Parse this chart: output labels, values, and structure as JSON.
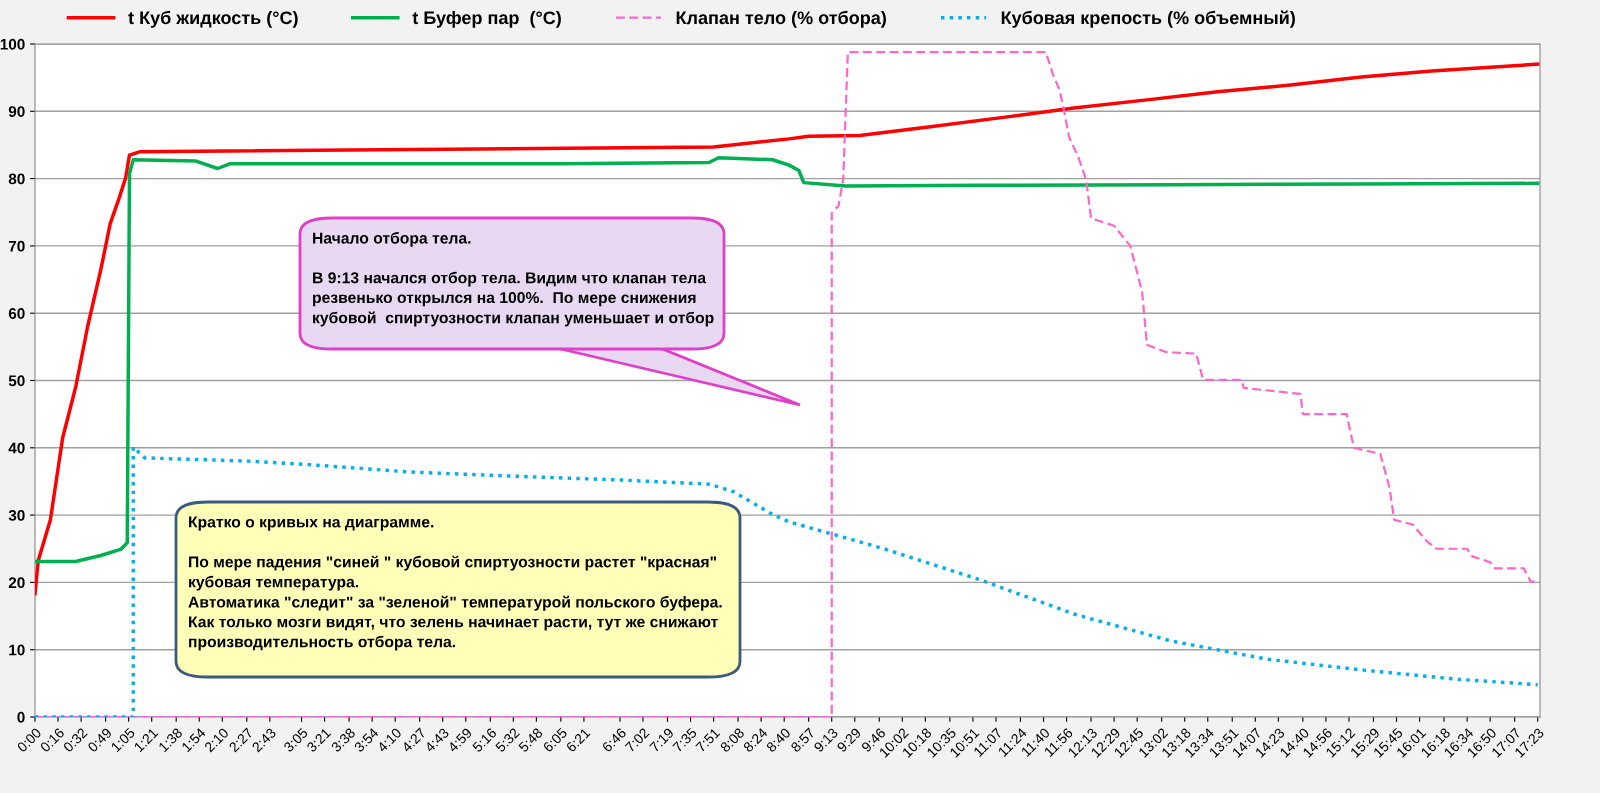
{
  "chart_data": {
    "type": "line",
    "xlim": [
      0,
      17.41
    ],
    "ylim": [
      0,
      100
    ],
    "yticks": [
      0,
      10,
      20,
      30,
      40,
      50,
      60,
      70,
      80,
      90,
      100
    ],
    "xticks": [
      {
        "value": 0,
        "label": "0:00"
      },
      {
        "value": 0.2667,
        "label": "0:16"
      },
      {
        "value": 0.5333,
        "label": "0:32"
      },
      {
        "value": 0.8167,
        "label": "0:49"
      },
      {
        "value": 1.0833,
        "label": "1:05"
      },
      {
        "value": 1.35,
        "label": "1:21"
      },
      {
        "value": 1.6333,
        "label": "1:38"
      },
      {
        "value": 1.9,
        "label": "1:54"
      },
      {
        "value": 2.1667,
        "label": "2:10"
      },
      {
        "value": 2.45,
        "label": "2:27"
      },
      {
        "value": 2.7167,
        "label": "2:43"
      },
      {
        "value": 3.0833,
        "label": "3:05"
      },
      {
        "value": 3.35,
        "label": "3:21"
      },
      {
        "value": 3.6333,
        "label": "3:38"
      },
      {
        "value": 3.9,
        "label": "3:54"
      },
      {
        "value": 4.1667,
        "label": "4:10"
      },
      {
        "value": 4.45,
        "label": "4:27"
      },
      {
        "value": 4.7167,
        "label": "4:43"
      },
      {
        "value": 4.9833,
        "label": "4:59"
      },
      {
        "value": 5.2667,
        "label": "5:16"
      },
      {
        "value": 5.5333,
        "label": "5:32"
      },
      {
        "value": 5.8,
        "label": "5:48"
      },
      {
        "value": 6.0833,
        "label": "6:05"
      },
      {
        "value": 6.35,
        "label": "6:21"
      },
      {
        "value": 6.7667,
        "label": "6:46"
      },
      {
        "value": 7.0333,
        "label": "7:02"
      },
      {
        "value": 7.3167,
        "label": "7:19"
      },
      {
        "value": 7.5833,
        "label": "7:35"
      },
      {
        "value": 7.85,
        "label": "7:51"
      },
      {
        "value": 8.1333,
        "label": "8:08"
      },
      {
        "value": 8.4,
        "label": "8:24"
      },
      {
        "value": 8.6667,
        "label": "8:40"
      },
      {
        "value": 8.95,
        "label": "8:57"
      },
      {
        "value": 9.2167,
        "label": "9:13"
      },
      {
        "value": 9.4833,
        "label": "9:29"
      },
      {
        "value": 9.7667,
        "label": "9:46"
      },
      {
        "value": 10.0333,
        "label": "10:02"
      },
      {
        "value": 10.3,
        "label": "10:18"
      },
      {
        "value": 10.5833,
        "label": "10:35"
      },
      {
        "value": 10.85,
        "label": "10:51"
      },
      {
        "value": 11.1167,
        "label": "11:07"
      },
      {
        "value": 11.4,
        "label": "11:24"
      },
      {
        "value": 11.6667,
        "label": "11:40"
      },
      {
        "value": 11.9333,
        "label": "11:56"
      },
      {
        "value": 12.2167,
        "label": "12:13"
      },
      {
        "value": 12.4833,
        "label": "12:29"
      },
      {
        "value": 12.75,
        "label": "12:45"
      },
      {
        "value": 13.0333,
        "label": "13:02"
      },
      {
        "value": 13.3,
        "label": "13:18"
      },
      {
        "value": 13.5667,
        "label": "13:34"
      },
      {
        "value": 13.85,
        "label": "13:51"
      },
      {
        "value": 14.1167,
        "label": "14:07"
      },
      {
        "value": 14.3833,
        "label": "14:23"
      },
      {
        "value": 14.6667,
        "label": "14:40"
      },
      {
        "value": 14.9333,
        "label": "14:56"
      },
      {
        "value": 15.2,
        "label": "15:12"
      },
      {
        "value": 15.4833,
        "label": "15:29"
      },
      {
        "value": 15.75,
        "label": "15:45"
      },
      {
        "value": 16.0167,
        "label": "16:01"
      },
      {
        "value": 16.3,
        "label": "16:18"
      },
      {
        "value": 16.5667,
        "label": "16:34"
      },
      {
        "value": 16.8333,
        "label": "16:50"
      },
      {
        "value": 17.1167,
        "label": "17:07"
      },
      {
        "value": 17.3833,
        "label": "17:23"
      }
    ],
    "grid": "y",
    "legend": "top",
    "series": [
      {
        "name": "t Куб жидкость (°C)",
        "color": "#ff0000",
        "line_style": "solid",
        "x": [
          0,
          0.037,
          0.178,
          0.32,
          0.47,
          0.61,
          0.76,
          0.87,
          0.973,
          1.048,
          1.093,
          1.217,
          7.85,
          8.723,
          8.95,
          9.54,
          10.357,
          11.202,
          12.018,
          12.863,
          13.68,
          14.525,
          15.342,
          16.158,
          17.383
        ],
        "values": [
          18.3,
          23.2,
          29.3,
          41.5,
          49.0,
          58.1,
          66.4,
          73.3,
          77.1,
          80.1,
          83.5,
          84.0,
          84.7,
          85.9,
          86.3,
          86.4,
          87.7,
          89.1,
          90.5,
          91.7,
          92.9,
          93.9,
          95.1,
          96.0,
          97.0
        ]
      },
      {
        "name": "t Буфер пар  (°C)",
        "color": "#00b050",
        "line_style": "solid",
        "x": [
          0,
          0.47,
          0.76,
          0.99,
          1.067,
          1.093,
          1.137,
          1.863,
          2.113,
          2.252,
          4.337,
          6.083,
          7.797,
          7.907,
          8.533,
          8.723,
          8.837,
          8.893,
          9.377,
          10.93,
          13.14,
          15.342,
          17.383
        ],
        "values": [
          23.1,
          23.1,
          24.0,
          24.9,
          25.9,
          80.8,
          82.8,
          82.6,
          81.5,
          82.2,
          82.2,
          82.2,
          82.4,
          83.1,
          82.8,
          82.0,
          81.2,
          79.4,
          78.9,
          79.0,
          79.1,
          79.2,
          79.3
        ]
      },
      {
        "name": "Клапан тело (% отбора)",
        "color": "#ff66cc",
        "line_style": "dashed",
        "x": [
          0,
          9.217,
          9.217,
          9.297,
          9.35,
          9.403,
          11.693,
          11.773,
          11.853,
          11.907,
          11.962,
          12.075,
          12.16,
          12.217,
          12.483,
          12.67,
          12.807,
          12.863,
          13.087,
          13.433,
          13.513,
          13.957,
          13.983,
          14.638,
          14.667,
          15.173,
          15.257,
          15.563,
          15.67,
          15.723,
          15.937,
          16.102,
          16.215,
          16.567,
          16.62,
          16.833,
          16.89,
          17.223,
          17.303,
          17.383
        ],
        "values": [
          0,
          0,
          74.9,
          76.0,
          80.0,
          98.8,
          98.8,
          95.6,
          93.1,
          89.9,
          86.2,
          83.0,
          79.8,
          74.1,
          73.0,
          70.0,
          63.2,
          55.3,
          54.2,
          54.0,
          50.1,
          50.1,
          48.9,
          48.0,
          45.0,
          45.0,
          40.0,
          39.1,
          34.0,
          29.3,
          28.6,
          26.1,
          25.0,
          25.0,
          23.9,
          23.0,
          22.1,
          22.1,
          20.1,
          20.1
        ]
      },
      {
        "name": "Кубовая крепость (% объемный)",
        "color": "#00b0f0",
        "line_style": "dotted",
        "x": [
          0,
          1.137,
          1.137,
          1.27,
          2.503,
          3.163,
          4.337,
          5.507,
          6.793,
          7.797,
          8.077,
          8.533,
          8.723,
          9.217,
          9.82,
          10.93,
          12.018,
          13.14,
          14.25,
          15.342,
          16.46,
          17.383
        ],
        "values": [
          0,
          0,
          40.1,
          38.5,
          38.0,
          37.5,
          36.4,
          35.8,
          35.2,
          34.6,
          33.5,
          30.1,
          29.0,
          27.2,
          25.0,
          20.4,
          15.3,
          11.3,
          8.6,
          7.0,
          5.6,
          4.8
        ]
      }
    ],
    "annotations": [
      "Начало отбора тела.\n\nВ 9:13 начался отбор тела. Видим что клапан тела\nрезвенько открылся на 100%.  По мере снижения\nкубовой  спиртуозности клапан уменьшает и отбор",
      "Кратко о кривых на диаграмме.\n\nПо мере падения \"синей \" кубовой спиртуозности растет \"красная\"\nкубовая температура.\nАвтоматика \"следит\" за \"зеленой\" температурой польского буфера.\nКак только мозги видят, что зелень начинает расти, тут же снижают\nпроизводительность отбора тела."
    ]
  }
}
